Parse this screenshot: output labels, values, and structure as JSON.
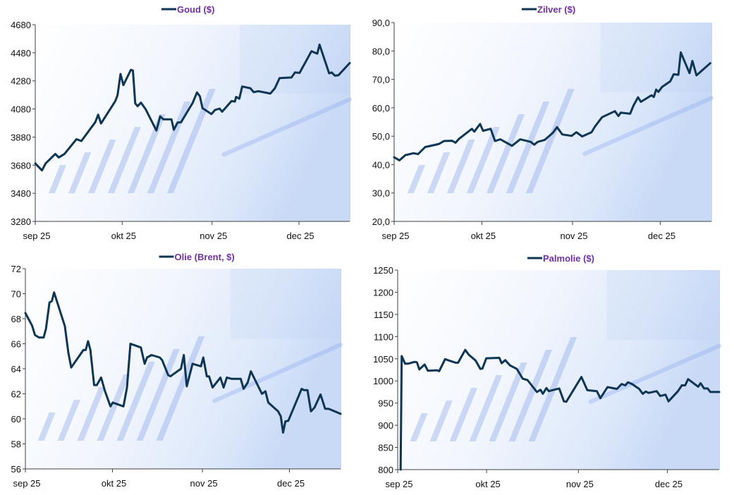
{
  "colors": {
    "line": "#0e3553",
    "legend_text": "#7030a0",
    "axis": "#404040"
  },
  "chart_data": [
    {
      "type": "line",
      "title": "Goud ($)",
      "x_unit": "days since 1 sep 2025",
      "xlim": [
        0,
        108.5
      ],
      "ylim": [
        3280,
        4680
      ],
      "xticks": [
        {
          "x": 0,
          "label": "sep 25"
        },
        {
          "x": 30,
          "label": "okt 25"
        },
        {
          "x": 61,
          "label": "nov 25"
        },
        {
          "x": 91,
          "label": "dec 25"
        }
      ],
      "yticks": [
        "3280",
        "3480",
        "3680",
        "3880",
        "4080",
        "4280",
        "4480",
        "4680"
      ],
      "grid": false,
      "legend": "top-center",
      "series": [
        {
          "name": "Goud ($)",
          "points": [
            [
              0,
              3693
            ],
            [
              2.3,
              3643
            ],
            [
              3.6,
              3693
            ],
            [
              6.9,
              3760
            ],
            [
              8.1,
              3735
            ],
            [
              10.1,
              3760
            ],
            [
              14.2,
              3865
            ],
            [
              15.9,
              3852
            ],
            [
              20.7,
              3986
            ],
            [
              21.7,
              4039
            ],
            [
              22.7,
              3977
            ],
            [
              27.6,
              4136
            ],
            [
              28.4,
              4178
            ],
            [
              29.4,
              4329
            ],
            [
              30.4,
              4250
            ],
            [
              33,
              4359
            ],
            [
              33.7,
              4354
            ],
            [
              34.5,
              4120
            ],
            [
              35.3,
              4100
            ],
            [
              36.5,
              4125
            ],
            [
              38.1,
              4078
            ],
            [
              41.8,
              3927
            ],
            [
              43.1,
              4028
            ],
            [
              44.2,
              4006
            ],
            [
              47,
              4006
            ],
            [
              47.8,
              3932
            ],
            [
              49.1,
              3983
            ],
            [
              50.3,
              3986
            ],
            [
              54.3,
              4123
            ],
            [
              55.8,
              4198
            ],
            [
              56.8,
              4170
            ],
            [
              57.7,
              4086
            ],
            [
              60.8,
              4044
            ],
            [
              62,
              4073
            ],
            [
              63.6,
              4083
            ],
            [
              64.5,
              4061
            ],
            [
              67.7,
              4136
            ],
            [
              68.9,
              4133
            ],
            [
              69.3,
              4166
            ],
            [
              70.4,
              4153
            ],
            [
              71.4,
              4240
            ],
            [
              74.2,
              4228
            ],
            [
              75.4,
              4200
            ],
            [
              77,
              4207
            ],
            [
              81.1,
              4190
            ],
            [
              82.7,
              4228
            ],
            [
              84.3,
              4300
            ],
            [
              88.4,
              4304
            ],
            [
              89.6,
              4340
            ],
            [
              91.2,
              4337
            ],
            [
              95.3,
              4491
            ],
            [
              97.3,
              4474
            ],
            [
              98.1,
              4538
            ],
            [
              101.4,
              4334
            ],
            [
              102.3,
              4340
            ],
            [
              103.4,
              4317
            ],
            [
              104.6,
              4320
            ],
            [
              108.5,
              4407
            ]
          ]
        }
      ]
    },
    {
      "type": "line",
      "title": "Zilver ($)",
      "x_unit": "days since 1 sep 2025",
      "xlim": [
        0,
        108.5
      ],
      "ylim": [
        20,
        90
      ],
      "xticks": [
        {
          "x": 0,
          "label": "sep 25"
        },
        {
          "x": 30,
          "label": "okt 25"
        },
        {
          "x": 61,
          "label": "nov 25"
        },
        {
          "x": 91,
          "label": "dec 25"
        }
      ],
      "yticks": [
        "20,0",
        "30,0",
        "40,0",
        "50,0",
        "60,0",
        "70,0",
        "80,0",
        "90,0"
      ],
      "grid": false,
      "legend": "top-center",
      "series": [
        {
          "name": "Zilver ($)",
          "points": [
            [
              0,
              42.6
            ],
            [
              1.8,
              41.5
            ],
            [
              3.8,
              43.3
            ],
            [
              6.6,
              44.0
            ],
            [
              8.2,
              43.7
            ],
            [
              10.6,
              46.2
            ],
            [
              13.8,
              46.9
            ],
            [
              15.4,
              47.3
            ],
            [
              17,
              48.3
            ],
            [
              19.8,
              48.4
            ],
            [
              21,
              47.7
            ],
            [
              22.2,
              49.1
            ],
            [
              26.6,
              52.6
            ],
            [
              27.4,
              51.6
            ],
            [
              29.4,
              54.3
            ],
            [
              30.4,
              51.9
            ],
            [
              33,
              52.6
            ],
            [
              34.5,
              48.3
            ],
            [
              36.3,
              48.9
            ],
            [
              40.3,
              46.6
            ],
            [
              43.1,
              48.9
            ],
            [
              46.7,
              48.0
            ],
            [
              47.9,
              47.0
            ],
            [
              49.1,
              48.0
            ],
            [
              51.5,
              48.7
            ],
            [
              54.3,
              51.2
            ],
            [
              55.7,
              53.2
            ],
            [
              57.5,
              50.6
            ],
            [
              60.7,
              50.1
            ],
            [
              62.3,
              51.4
            ],
            [
              64.3,
              49.9
            ],
            [
              67.5,
              51.4
            ],
            [
              68.7,
              53.4
            ],
            [
              71.1,
              56.7
            ],
            [
              75.5,
              58.8
            ],
            [
              76.7,
              57.1
            ],
            [
              77.5,
              58.3
            ],
            [
              80.7,
              57.9
            ],
            [
              81.8,
              60.7
            ],
            [
              83.4,
              63.7
            ],
            [
              84.4,
              62.1
            ],
            [
              88,
              64.4
            ],
            [
              88.8,
              63.8
            ],
            [
              89.6,
              66.4
            ],
            [
              90.4,
              65.6
            ],
            [
              91.6,
              67.3
            ],
            [
              94.4,
              69.3
            ],
            [
              95.6,
              71.8
            ],
            [
              97.2,
              71.6
            ],
            [
              98,
              79.5
            ],
            [
              101,
              72.2
            ],
            [
              102,
              76.5
            ],
            [
              103.4,
              71.4
            ],
            [
              108.1,
              75.7
            ]
          ]
        }
      ]
    },
    {
      "type": "line",
      "title": "Olie (Brent, $)",
      "x_unit": "days since 1 sep 2025",
      "xlim": [
        0,
        108.6
      ],
      "ylim": [
        56,
        72
      ],
      "xticks": [
        {
          "x": 0,
          "label": "sep 25"
        },
        {
          "x": 30,
          "label": "okt 25"
        },
        {
          "x": 61,
          "label": "nov 25"
        },
        {
          "x": 91,
          "label": "dec 25"
        }
      ],
      "yticks": [
        "56",
        "58",
        "60",
        "62",
        "64",
        "66",
        "68",
        "70",
        "72"
      ],
      "grid": false,
      "legend": "top-center",
      "series": [
        {
          "name": "Olie (Brent, $)",
          "points": [
            [
              0,
              68.45
            ],
            [
              2.3,
              67.45
            ],
            [
              3.3,
              66.7
            ],
            [
              4.7,
              66.5
            ],
            [
              6.3,
              66.5
            ],
            [
              7.1,
              67.2
            ],
            [
              8.3,
              69.3
            ],
            [
              9.1,
              69.4
            ],
            [
              9.9,
              70.1
            ],
            [
              13.6,
              67.4
            ],
            [
              14.8,
              65.3
            ],
            [
              15.8,
              64.1
            ],
            [
              20,
              65.5
            ],
            [
              20.8,
              65.5
            ],
            [
              21.6,
              66.2
            ],
            [
              22.4,
              65.5
            ],
            [
              23.7,
              62.7
            ],
            [
              24.6,
              62.7
            ],
            [
              26.1,
              63.3
            ],
            [
              27.3,
              62.3
            ],
            [
              29.3,
              61.0
            ],
            [
              30.1,
              61.3
            ],
            [
              33.8,
              61.0
            ],
            [
              35,
              62.5
            ],
            [
              36.2,
              66.0
            ],
            [
              39.8,
              65.7
            ],
            [
              40.7,
              64.8
            ],
            [
              41.1,
              64.4
            ],
            [
              41.9,
              64.9
            ],
            [
              43.5,
              65.1
            ],
            [
              46.3,
              64.9
            ],
            [
              47.1,
              64.7
            ],
            [
              49.2,
              63.5
            ],
            [
              50,
              63.4
            ],
            [
              51.2,
              63.6
            ],
            [
              53.6,
              64.0
            ],
            [
              54.6,
              65.1
            ],
            [
              55.6,
              62.6
            ],
            [
              57.6,
              64.4
            ],
            [
              60.5,
              64.2
            ],
            [
              61.3,
              64.9
            ],
            [
              62.5,
              63.4
            ],
            [
              63.3,
              63.4
            ],
            [
              64.5,
              62.5
            ],
            [
              67.2,
              63.3
            ],
            [
              68.3,
              62.5
            ],
            [
              69.4,
              63.3
            ],
            [
              71,
              63.2
            ],
            [
              74.2,
              63.2
            ],
            [
              75.2,
              62.4
            ],
            [
              76.6,
              62.9
            ],
            [
              77.7,
              63.8
            ],
            [
              81.5,
              62.0
            ],
            [
              82.7,
              62.2
            ],
            [
              83.7,
              61.3
            ],
            [
              87.1,
              60.6
            ],
            [
              88,
              60.2
            ],
            [
              88.8,
              58.9
            ],
            [
              89.6,
              59.8
            ],
            [
              90.6,
              59.85
            ],
            [
              95.2,
              62.4
            ],
            [
              96,
              62.3
            ],
            [
              97.2,
              62.3
            ],
            [
              98.4,
              60.6
            ],
            [
              99.6,
              60.9
            ],
            [
              101.7,
              61.95
            ],
            [
              103.3,
              60.8
            ],
            [
              104.5,
              60.8
            ],
            [
              108.6,
              60.4
            ]
          ]
        }
      ]
    },
    {
      "type": "line",
      "title": "Palmolie ($)",
      "x_unit": "days since 1 sep 2025",
      "xlim": [
        0,
        108.5
      ],
      "ylim": [
        800,
        1250
      ],
      "xticks": [
        {
          "x": 0,
          "label": "sep 25"
        },
        {
          "x": 30,
          "label": "okt 25"
        },
        {
          "x": 61,
          "label": "nov 25"
        },
        {
          "x": 91,
          "label": "dec 25"
        }
      ],
      "yticks": [
        "800",
        "850",
        "900",
        "950",
        "1000",
        "1050",
        "1100",
        "1150",
        "1200",
        "1250"
      ],
      "grid": false,
      "legend": "top-center",
      "series": [
        {
          "name": "Palmolie ($)",
          "points": [
            [
              1.0,
              800
            ],
            [
              1.35,
              1056
            ],
            [
              2.5,
              1039
            ],
            [
              3.6,
              1039
            ],
            [
              5.7,
              1043
            ],
            [
              6.5,
              1042
            ],
            [
              7.3,
              1026
            ],
            [
              9.1,
              1037
            ],
            [
              10.2,
              1023
            ],
            [
              13.3,
              1024
            ],
            [
              14,
              1022
            ],
            [
              16,
              1049
            ],
            [
              19.6,
              1041
            ],
            [
              20.4,
              1041
            ],
            [
              22.8,
              1070
            ],
            [
              24,
              1059
            ],
            [
              26.3,
              1046
            ],
            [
              27.9,
              1027
            ],
            [
              28.6,
              1028
            ],
            [
              29.9,
              1051
            ],
            [
              34.3,
              1052
            ],
            [
              35.1,
              1040
            ],
            [
              36.3,
              1047
            ],
            [
              37.9,
              1035
            ],
            [
              40.2,
              1027
            ],
            [
              42.2,
              1005
            ],
            [
              43.8,
              1002
            ],
            [
              47,
              975
            ],
            [
              48.2,
              980
            ],
            [
              49,
              971
            ],
            [
              50.2,
              984
            ],
            [
              51,
              977
            ],
            [
              54.5,
              983
            ],
            [
              56.1,
              954
            ],
            [
              56.9,
              953
            ],
            [
              62,
              1009
            ],
            [
              64,
              979
            ],
            [
              67.2,
              977
            ],
            [
              68.4,
              961
            ],
            [
              70.8,
              986
            ],
            [
              74,
              982
            ],
            [
              75.6,
              993
            ],
            [
              76.8,
              990
            ],
            [
              77.7,
              997
            ],
            [
              79.1,
              993
            ],
            [
              81.5,
              982
            ],
            [
              82.7,
              971
            ],
            [
              83.7,
              976
            ],
            [
              84.7,
              973
            ],
            [
              87.4,
              977
            ],
            [
              88.6,
              966
            ],
            [
              90.4,
              969
            ],
            [
              91.4,
              954
            ],
            [
              94.6,
              977
            ],
            [
              95.9,
              990
            ],
            [
              97,
              990
            ],
            [
              98,
              1004
            ],
            [
              101.4,
              987
            ],
            [
              102.2,
              995
            ],
            [
              103.4,
              983
            ],
            [
              104.6,
              983
            ],
            [
              105.5,
              975
            ],
            [
              108.5,
              975
            ]
          ]
        }
      ]
    }
  ]
}
